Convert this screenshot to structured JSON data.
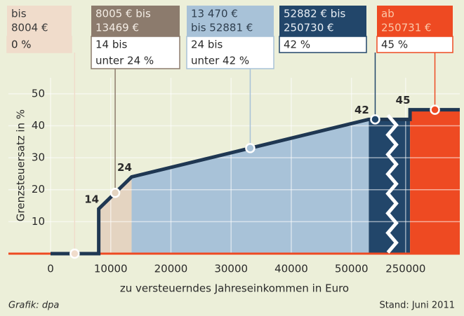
{
  "chart_data": {
    "type": "line",
    "y_label": "Grenzsteuersatz in %",
    "x_label": "zu versteuerndes Jahreseinkommen in Euro",
    "source": "Grafik: dpa",
    "date_note": "Stand: Juni 2011",
    "x": [
      0,
      8004,
      8005,
      13469,
      52881,
      250730,
      250731,
      259000
    ],
    "y": [
      0,
      0,
      14,
      24,
      42,
      42,
      45,
      45
    ],
    "color": "#1f3752",
    "xlim": [
      -7000,
      259000
    ],
    "xbreak": [
      55000,
      249500
    ],
    "xticks": [
      0,
      10000,
      20000,
      30000,
      40000,
      50000,
      250000
    ],
    "ylim": [
      0,
      55
    ],
    "yticks": [
      10,
      20,
      30,
      40,
      50
    ],
    "grid": true,
    "zones": [
      {
        "range": [
          0,
          8004
        ],
        "header": [
          "bis",
          "8004 €"
        ],
        "body": [
          "0 %"
        ],
        "color": "#f0dccb",
        "box_color": "#f0dccb",
        "header_text": "#3a3a3a"
      },
      {
        "range": [
          8005,
          13469
        ],
        "header": [
          "8005 € bis",
          "13469 €"
        ],
        "body": [
          "14 bis",
          "unter 24 %"
        ],
        "color": "#e4d4c1",
        "box_color": "#8c7b6d",
        "header_text": "#f3ece4"
      },
      {
        "range": [
          13470,
          52881
        ],
        "header": [
          "13 470 €",
          "bis 52881 €"
        ],
        "body": [
          "24 bis",
          "unter 42 %"
        ],
        "color": "#a8c2d8",
        "box_color": "#a8c2d8",
        "header_text": "#2f3f4f"
      },
      {
        "range": [
          52882,
          250730
        ],
        "header": [
          "52882 € bis",
          "250730 €"
        ],
        "body": [
          "42 %"
        ],
        "color": "#22466a",
        "box_color": "#22466a",
        "header_text": "#e8eef4"
      },
      {
        "range": [
          250731,
          null
        ],
        "header": [
          "ab",
          "250731 €"
        ],
        "body": [
          "45 %"
        ],
        "color": "#ee4a22",
        "box_color": "#ee4a22",
        "header_text": "#fbc7a8"
      }
    ]
  }
}
